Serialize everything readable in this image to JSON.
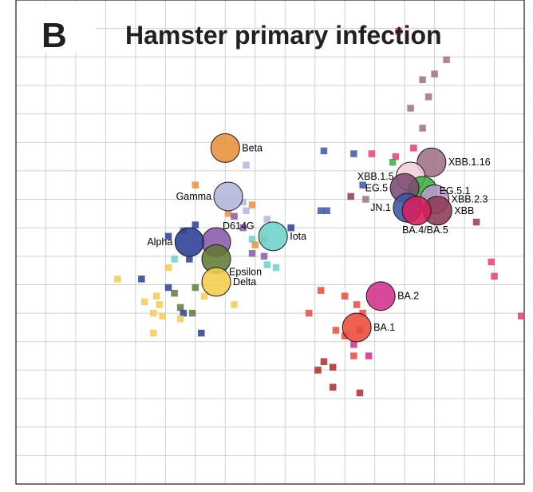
{
  "panel_letter": "B",
  "title": "Hamster primary infection",
  "chart_data": {
    "type": "scatter",
    "title": "Hamster primary infection",
    "xlabel": "",
    "ylabel": "",
    "xlim": [
      0,
      17
    ],
    "ylim": [
      0,
      17
    ],
    "grid": true,
    "grid_step": 1,
    "legend": "none",
    "antigens": [
      {
        "name": "Beta",
        "x": 7.0,
        "y": 11.8,
        "color": "#e8913a",
        "label_side": "right"
      },
      {
        "name": "Gamma",
        "x": 7.1,
        "y": 10.1,
        "color": "#b3b5dc",
        "label_side": "left"
      },
      {
        "name": "D614G",
        "x": 6.7,
        "y": 8.5,
        "color": "#8a5aa8",
        "label_side": "top-right"
      },
      {
        "name": "Iota",
        "x": 8.6,
        "y": 8.7,
        "color": "#6dd2c9",
        "label_side": "right"
      },
      {
        "name": "Alpha",
        "x": 5.8,
        "y": 8.5,
        "color": "#2a3e96",
        "label_side": "left"
      },
      {
        "name": "Epsilon",
        "x": 6.7,
        "y": 7.9,
        "color": "#617a36",
        "label_side": "bottom-right"
      },
      {
        "name": "Delta",
        "x": 6.7,
        "y": 7.1,
        "color": "#f2cc4e",
        "label_side": "right"
      },
      {
        "name": "XBB.1.16",
        "x": 13.9,
        "y": 11.3,
        "color": "#a06f86",
        "label_side": "right"
      },
      {
        "name": "XBB.1.5",
        "x": 13.2,
        "y": 10.8,
        "color": "#f6cfdb",
        "label_side": "left"
      },
      {
        "name": "EG.5.1",
        "x": 13.6,
        "y": 10.3,
        "color": "#3aae3f",
        "label_side": "right"
      },
      {
        "name": "EG.5",
        "x": 13.0,
        "y": 10.4,
        "color": "#7b4a72",
        "label_side": "left"
      },
      {
        "name": "XBB.2.3",
        "x": 14.0,
        "y": 10.0,
        "color": "#b89ac9",
        "label_side": "right"
      },
      {
        "name": "XBB",
        "x": 14.1,
        "y": 9.6,
        "color": "#8c3a55",
        "label_side": "right"
      },
      {
        "name": "JN.1",
        "x": 13.1,
        "y": 9.7,
        "color": "#3d57a6",
        "label_side": "left"
      },
      {
        "name": "BA.4/BA.5",
        "x": 13.4,
        "y": 9.6,
        "color": "#d61e5a",
        "label_side": "bottom"
      },
      {
        "name": "BA.2",
        "x": 12.2,
        "y": 6.6,
        "color": "#d3308c",
        "label_side": "right"
      },
      {
        "name": "BA.1",
        "x": 11.4,
        "y": 5.5,
        "color": "#ea4a3a",
        "label_side": "right"
      }
    ],
    "sera": [
      {
        "x": 12.8,
        "y": 15.9,
        "color": "#e8397a"
      },
      {
        "x": 14.4,
        "y": 14.9,
        "color": "#a06f86"
      },
      {
        "x": 14.0,
        "y": 14.4,
        "color": "#a06f86"
      },
      {
        "x": 13.6,
        "y": 14.2,
        "color": "#a06f86"
      },
      {
        "x": 13.8,
        "y": 13.6,
        "color": "#a06f86"
      },
      {
        "x": 13.2,
        "y": 13.2,
        "color": "#a06f86"
      },
      {
        "x": 13.6,
        "y": 12.5,
        "color": "#a06f86"
      },
      {
        "x": 13.3,
        "y": 11.8,
        "color": "#e8397a"
      },
      {
        "x": 12.7,
        "y": 11.5,
        "color": "#e8397a"
      },
      {
        "x": 11.9,
        "y": 11.6,
        "color": "#e8397a"
      },
      {
        "x": 11.3,
        "y": 11.6,
        "color": "#3d57a6"
      },
      {
        "x": 10.3,
        "y": 11.7,
        "color": "#3d57a6"
      },
      {
        "x": 12.6,
        "y": 11.3,
        "color": "#3aae3f"
      },
      {
        "x": 11.6,
        "y": 10.5,
        "color": "#3d57a6"
      },
      {
        "x": 11.2,
        "y": 10.1,
        "color": "#8c3a55"
      },
      {
        "x": 11.7,
        "y": 10.0,
        "color": "#a06f86"
      },
      {
        "x": 10.4,
        "y": 9.6,
        "color": "#3d57a6"
      },
      {
        "x": 10.2,
        "y": 9.6,
        "color": "#3d57a6"
      },
      {
        "x": 15.4,
        "y": 9.2,
        "color": "#8c3a55"
      },
      {
        "x": 15.9,
        "y": 7.8,
        "color": "#e8397a"
      },
      {
        "x": 16.0,
        "y": 7.3,
        "color": "#e8397a"
      },
      {
        "x": 16.9,
        "y": 5.9,
        "color": "#e8397a"
      },
      {
        "x": 7.7,
        "y": 11.2,
        "color": "#b3b5dc"
      },
      {
        "x": 6.0,
        "y": 10.5,
        "color": "#e8913a"
      },
      {
        "x": 7.6,
        "y": 9.9,
        "color": "#b3b5dc"
      },
      {
        "x": 7.9,
        "y": 9.8,
        "color": "#e8913a"
      },
      {
        "x": 7.7,
        "y": 9.6,
        "color": "#b3b5dc"
      },
      {
        "x": 7.1,
        "y": 9.5,
        "color": "#e8913a"
      },
      {
        "x": 8.4,
        "y": 9.3,
        "color": "#b3b5dc"
      },
      {
        "x": 7.3,
        "y": 9.4,
        "color": "#8a5aa8"
      },
      {
        "x": 9.2,
        "y": 9.0,
        "color": "#2a3e96"
      },
      {
        "x": 6.0,
        "y": 9.1,
        "color": "#2a3e96"
      },
      {
        "x": 5.6,
        "y": 8.9,
        "color": "#8a5aa8"
      },
      {
        "x": 7.6,
        "y": 9.0,
        "color": "#8a5aa8"
      },
      {
        "x": 5.1,
        "y": 8.7,
        "color": "#2a3e96"
      },
      {
        "x": 8.3,
        "y": 8.6,
        "color": "#e8913a"
      },
      {
        "x": 7.9,
        "y": 8.6,
        "color": "#6dd2c9"
      },
      {
        "x": 8.0,
        "y": 8.4,
        "color": "#e8913a"
      },
      {
        "x": 7.9,
        "y": 8.1,
        "color": "#8a5aa8"
      },
      {
        "x": 8.3,
        "y": 8.0,
        "color": "#8a5aa8"
      },
      {
        "x": 8.4,
        "y": 7.7,
        "color": "#6dd2c9"
      },
      {
        "x": 8.7,
        "y": 7.6,
        "color": "#6dd2c9"
      },
      {
        "x": 5.1,
        "y": 7.6,
        "color": "#f2cc4e"
      },
      {
        "x": 5.3,
        "y": 7.9,
        "color": "#6dd2c9"
      },
      {
        "x": 5.8,
        "y": 7.9,
        "color": "#2a3e96"
      },
      {
        "x": 3.4,
        "y": 7.2,
        "color": "#f2cc4e"
      },
      {
        "x": 4.2,
        "y": 7.2,
        "color": "#2a3e96"
      },
      {
        "x": 5.1,
        "y": 6.9,
        "color": "#2a3e96"
      },
      {
        "x": 5.3,
        "y": 6.7,
        "color": "#617a36"
      },
      {
        "x": 6.0,
        "y": 6.9,
        "color": "#617a36"
      },
      {
        "x": 6.3,
        "y": 6.6,
        "color": "#f2cc4e"
      },
      {
        "x": 4.3,
        "y": 6.4,
        "color": "#f2cc4e"
      },
      {
        "x": 4.7,
        "y": 6.6,
        "color": "#f2cc4e"
      },
      {
        "x": 4.8,
        "y": 6.3,
        "color": "#f2cc4e"
      },
      {
        "x": 7.3,
        "y": 6.3,
        "color": "#f2cc4e"
      },
      {
        "x": 5.5,
        "y": 6.2,
        "color": "#617a36"
      },
      {
        "x": 5.6,
        "y": 6.0,
        "color": "#2a3e96"
      },
      {
        "x": 5.9,
        "y": 6.0,
        "color": "#617a36"
      },
      {
        "x": 4.6,
        "y": 6.0,
        "color": "#f2cc4e"
      },
      {
        "x": 4.9,
        "y": 5.9,
        "color": "#f2cc4e"
      },
      {
        "x": 5.5,
        "y": 5.8,
        "color": "#f2cc4e"
      },
      {
        "x": 6.2,
        "y": 5.3,
        "color": "#2a3e96"
      },
      {
        "x": 4.6,
        "y": 5.3,
        "color": "#f2cc4e"
      },
      {
        "x": 10.2,
        "y": 6.8,
        "color": "#ea4a3a"
      },
      {
        "x": 11.0,
        "y": 6.6,
        "color": "#ea4a3a"
      },
      {
        "x": 11.4,
        "y": 6.3,
        "color": "#ea4a3a"
      },
      {
        "x": 9.8,
        "y": 6.0,
        "color": "#ea4a3a"
      },
      {
        "x": 11.6,
        "y": 6.0,
        "color": "#ea4a3a"
      },
      {
        "x": 10.7,
        "y": 5.4,
        "color": "#ea4a3a"
      },
      {
        "x": 11.5,
        "y": 5.4,
        "color": "#ea4a3a"
      },
      {
        "x": 11.0,
        "y": 5.2,
        "color": "#ea4a3a"
      },
      {
        "x": 11.3,
        "y": 4.9,
        "color": "#d3308c"
      },
      {
        "x": 11.3,
        "y": 4.5,
        "color": "#ea4a3a"
      },
      {
        "x": 11.8,
        "y": 4.5,
        "color": "#d3308c"
      },
      {
        "x": 10.3,
        "y": 4.3,
        "color": "#b02a2a"
      },
      {
        "x": 10.6,
        "y": 4.1,
        "color": "#b02a2a"
      },
      {
        "x": 10.1,
        "y": 4.0,
        "color": "#b02a2a"
      },
      {
        "x": 10.6,
        "y": 3.4,
        "color": "#b02a2a"
      },
      {
        "x": 11.5,
        "y": 3.2,
        "color": "#b02a2a"
      }
    ]
  }
}
